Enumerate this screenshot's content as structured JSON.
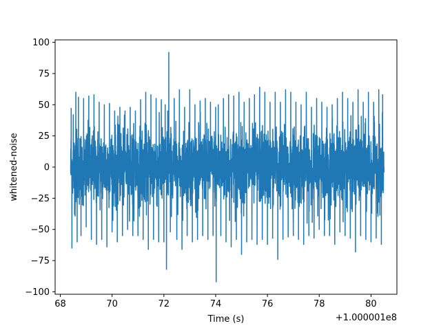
{
  "chart_data": {
    "type": "line",
    "title": "",
    "xlabel": "Time (s)",
    "ylabel": "whitened-noise",
    "offset_label": "+1.000001e8",
    "xlim": [
      67.8,
      81.0
    ],
    "ylim": [
      -102,
      102
    ],
    "x_ticks": [
      68,
      70,
      72,
      74,
      76,
      78,
      80
    ],
    "y_ticks": [
      -100,
      -75,
      -50,
      -25,
      0,
      25,
      50,
      75,
      100
    ],
    "grid": false,
    "legend": "none",
    "series": [
      {
        "color": "#1f77b4",
        "x_start": 68.4,
        "x_end": 80.5,
        "points": [
          [
            68.4,
            0
          ],
          [
            68.42,
            47
          ],
          [
            68.45,
            -65
          ],
          [
            68.5,
            42
          ],
          [
            68.55,
            -38
          ],
          [
            68.6,
            60
          ],
          [
            68.65,
            -60
          ],
          [
            68.7,
            56
          ],
          [
            68.8,
            -55
          ],
          [
            68.9,
            55
          ],
          [
            69.0,
            -48
          ],
          [
            69.1,
            57
          ],
          [
            69.2,
            -58
          ],
          [
            69.3,
            58
          ],
          [
            69.4,
            -62
          ],
          [
            69.5,
            52
          ],
          [
            69.6,
            -58
          ],
          [
            69.7,
            50
          ],
          [
            69.8,
            -64
          ],
          [
            69.9,
            51
          ],
          [
            70.0,
            -52
          ],
          [
            70.1,
            45
          ],
          [
            70.2,
            -60
          ],
          [
            70.3,
            48
          ],
          [
            70.4,
            -55
          ],
          [
            70.5,
            45
          ],
          [
            70.6,
            -50
          ],
          [
            70.7,
            48
          ],
          [
            70.8,
            -55
          ],
          [
            70.9,
            45
          ],
          [
            71.0,
            -55
          ],
          [
            71.1,
            54
          ],
          [
            71.2,
            -58
          ],
          [
            71.3,
            60
          ],
          [
            71.4,
            -66
          ],
          [
            71.5,
            58
          ],
          [
            71.6,
            -58
          ],
          [
            71.7,
            55
          ],
          [
            71.8,
            -60
          ],
          [
            71.9,
            54
          ],
          [
            72.0,
            -60
          ],
          [
            72.05,
            50
          ],
          [
            72.1,
            -82
          ],
          [
            72.15,
            45
          ],
          [
            72.19,
            92
          ],
          [
            72.25,
            -52
          ],
          [
            72.4,
            55
          ],
          [
            72.5,
            -58
          ],
          [
            72.6,
            62
          ],
          [
            72.7,
            -66
          ],
          [
            72.8,
            48
          ],
          [
            72.9,
            -55
          ],
          [
            73.0,
            62
          ],
          [
            73.1,
            -60
          ],
          [
            73.2,
            50
          ],
          [
            73.3,
            -58
          ],
          [
            73.4,
            53
          ],
          [
            73.5,
            -55
          ],
          [
            73.6,
            55
          ],
          [
            73.7,
            -58
          ],
          [
            73.8,
            52
          ],
          [
            73.9,
            -55
          ],
          [
            74.0,
            48
          ],
          [
            74.02,
            -92
          ],
          [
            74.1,
            50
          ],
          [
            74.2,
            -55
          ],
          [
            74.3,
            55
          ],
          [
            74.4,
            -60
          ],
          [
            74.5,
            58
          ],
          [
            74.6,
            -64
          ],
          [
            74.7,
            57
          ],
          [
            74.8,
            -58
          ],
          [
            74.9,
            60
          ],
          [
            75.0,
            -70
          ],
          [
            75.1,
            52
          ],
          [
            75.2,
            -60
          ],
          [
            75.3,
            55
          ],
          [
            75.4,
            -58
          ],
          [
            75.5,
            58
          ],
          [
            75.6,
            -62
          ],
          [
            75.7,
            64
          ],
          [
            75.8,
            -58
          ],
          [
            75.9,
            60
          ],
          [
            76.0,
            -62
          ],
          [
            76.1,
            52
          ],
          [
            76.2,
            -57
          ],
          [
            76.3,
            60
          ],
          [
            76.4,
            -74
          ],
          [
            76.5,
            52
          ],
          [
            76.6,
            -58
          ],
          [
            76.7,
            62
          ],
          [
            76.8,
            -56
          ],
          [
            76.9,
            60
          ],
          [
            77.0,
            -55
          ],
          [
            77.1,
            52
          ],
          [
            77.2,
            -58
          ],
          [
            77.3,
            50
          ],
          [
            77.4,
            -62
          ],
          [
            77.5,
            60
          ],
          [
            77.6,
            -55
          ],
          [
            77.7,
            48
          ],
          [
            77.8,
            -57
          ],
          [
            77.9,
            55
          ],
          [
            78.0,
            -50
          ],
          [
            78.1,
            52
          ],
          [
            78.2,
            -55
          ],
          [
            78.3,
            48
          ],
          [
            78.4,
            -55
          ],
          [
            78.5,
            50
          ],
          [
            78.6,
            -62
          ],
          [
            78.7,
            55
          ],
          [
            78.8,
            -52
          ],
          [
            78.9,
            60
          ],
          [
            79.0,
            -55
          ],
          [
            79.1,
            55
          ],
          [
            79.2,
            -57
          ],
          [
            79.3,
            52
          ],
          [
            79.4,
            -68
          ],
          [
            79.5,
            62
          ],
          [
            79.6,
            -55
          ],
          [
            79.7,
            52
          ],
          [
            79.8,
            -58
          ],
          [
            79.9,
            60
          ],
          [
            80.0,
            -60
          ],
          [
            80.1,
            52
          ],
          [
            80.2,
            -57
          ],
          [
            80.3,
            62
          ],
          [
            80.4,
            -62
          ],
          [
            80.45,
            58
          ],
          [
            80.5,
            0
          ]
        ]
      }
    ]
  }
}
